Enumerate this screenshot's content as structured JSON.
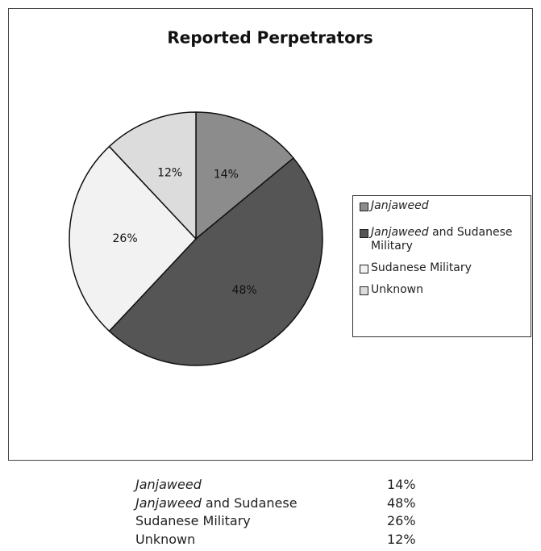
{
  "chart_data": {
    "type": "pie",
    "title": "Reported Perpetrators",
    "categories": [
      "Janjaweed",
      "Janjaweed and Sudanese Military",
      "Sudanese Military",
      "Unknown"
    ],
    "values": [
      14,
      48,
      26,
      12
    ],
    "value_labels": [
      "14%",
      "48%",
      "26%",
      "12%"
    ],
    "colors": [
      "#8c8c8c",
      "#555555",
      "#f2f2f2",
      "#dcdcdc"
    ],
    "italic_term": "Janjaweed",
    "legend": "right"
  },
  "table": {
    "rows": [
      [
        "Janjaweed",
        "14%"
      ],
      [
        "Janjaweed and Sudanese",
        "48%"
      ],
      [
        "Sudanese Military",
        "26%"
      ],
      [
        "Unknown",
        "12%"
      ]
    ]
  }
}
